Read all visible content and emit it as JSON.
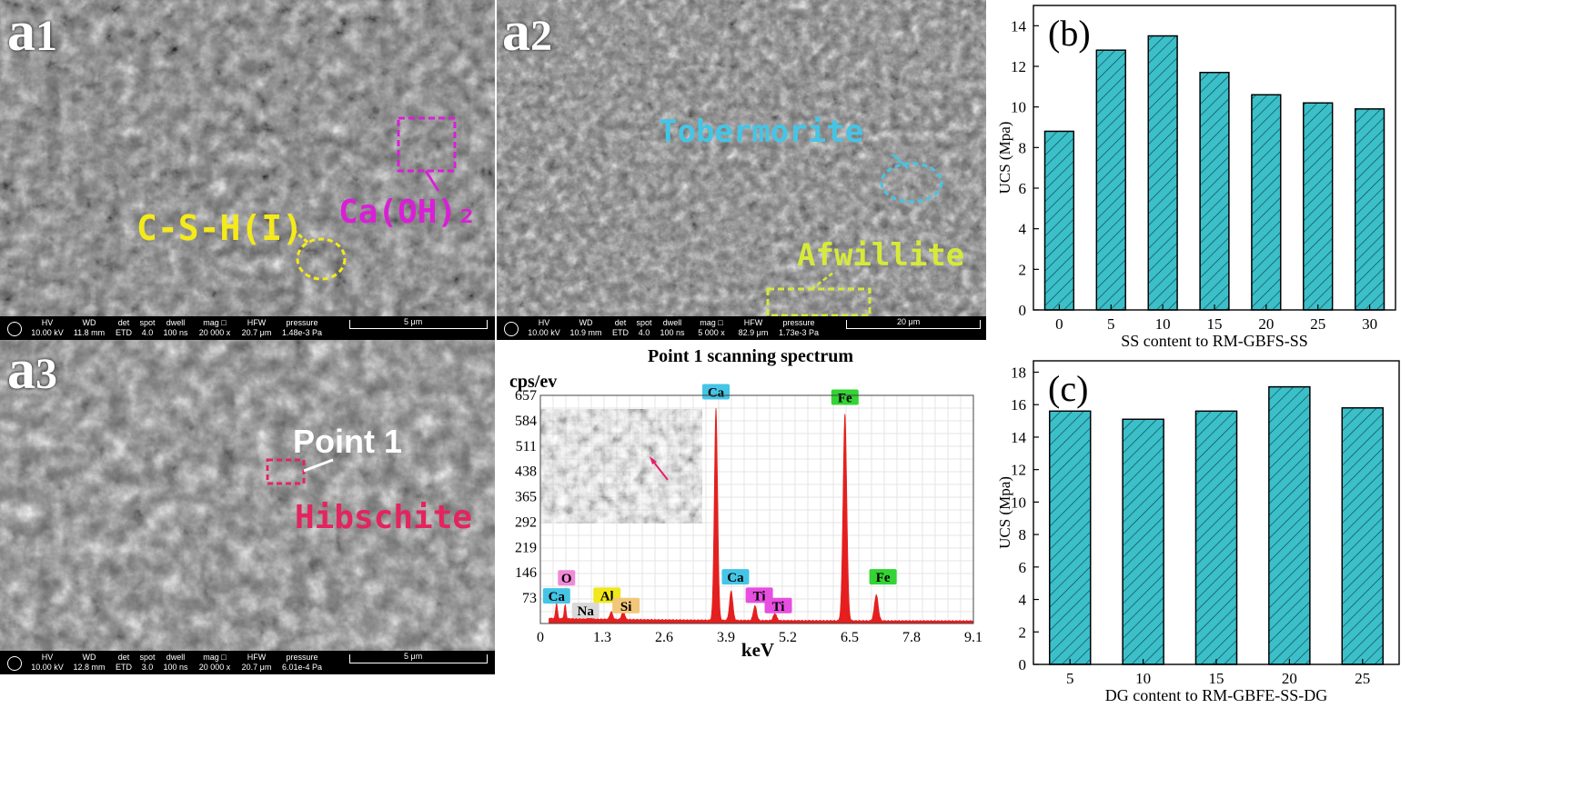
{
  "sem_panels": {
    "a1": {
      "label_main": "a",
      "label_sub": "1",
      "annotations": {
        "csh": "C-S-H(I)",
        "caoh": "Ca(OH)₂"
      },
      "info": {
        "hv": [
          "HV",
          "10.00 kV"
        ],
        "wd": [
          "WD",
          "11.8 mm"
        ],
        "det": [
          "det",
          "ETD"
        ],
        "spot": [
          "spot",
          "4.0"
        ],
        "dwell": [
          "dwell",
          "100 ns"
        ],
        "mag": [
          "mag □",
          "20 000 x"
        ],
        "hfw": [
          "HFW",
          "20.7 μm"
        ],
        "pressure": [
          "pressure",
          "1.48e-3 Pa"
        ],
        "scale": "5 μm"
      }
    },
    "a2": {
      "label_main": "a",
      "label_sub": "2",
      "annotations": {
        "tobermorite": "Tobermorite",
        "afwillite": "Afwillite"
      },
      "info": {
        "hv": [
          "HV",
          "10.00 kV"
        ],
        "wd": [
          "WD",
          "10.9 mm"
        ],
        "det": [
          "det",
          "ETD"
        ],
        "spot": [
          "spot",
          "4.0"
        ],
        "dwell": [
          "dwell",
          "100 ns"
        ],
        "mag": [
          "mag □",
          "5 000 x"
        ],
        "hfw": [
          "HFW",
          "82.9 μm"
        ],
        "pressure": [
          "pressure",
          "1.73e-3 Pa"
        ],
        "scale": "20 μm"
      }
    },
    "a3": {
      "label_main": "a",
      "label_sub": "3",
      "annotations": {
        "point": "Point 1",
        "hibschite": "Hibschite"
      },
      "info": {
        "hv": [
          "HV",
          "10.00 kV"
        ],
        "wd": [
          "WD",
          "12.8 mm"
        ],
        "det": [
          "det",
          "ETD"
        ],
        "spot": [
          "spot",
          "3.0"
        ],
        "dwell": [
          "dwell",
          "100 ns"
        ],
        "mag": [
          "mag □",
          "20 000 x"
        ],
        "hfw": [
          "HFW",
          "20.7 μm"
        ],
        "pressure": [
          "pressure",
          "6.01e-4 Pa"
        ],
        "scale": "5 μm"
      }
    }
  },
  "colors": {
    "bar_fill": "#3bbfc9",
    "eds_fill": "#e51f1f",
    "csh": "#f5ea1a",
    "caoh": "#d91fd6",
    "tobermorite": "#45c5e6",
    "afwillite": "#d6ea3a",
    "point": "#ffffff",
    "hibschite": "#e3245f"
  },
  "chart_data": [
    {
      "id": "eds",
      "type": "area",
      "title": "Point 1 scanning spectrum",
      "xlabel": "keV",
      "ylabel": "cps/ev",
      "xticks": [
        0,
        1.3,
        2.6,
        3.9,
        5.2,
        6.5,
        7.8,
        9.1
      ],
      "yticks": [
        73,
        146,
        219,
        292,
        365,
        438,
        511,
        584,
        657
      ],
      "xlim": [
        0,
        9.1
      ],
      "ylim": [
        0,
        657
      ],
      "grid": true,
      "peaks": [
        {
          "x": 0.34,
          "y": 45,
          "w": 0.02
        },
        {
          "x": 0.52,
          "y": 40,
          "w": 0.02
        },
        {
          "x": 1.04,
          "y": 10,
          "w": 0.03
        },
        {
          "x": 1.49,
          "y": 22,
          "w": 0.03
        },
        {
          "x": 1.74,
          "y": 28,
          "w": 0.03
        },
        {
          "x": 3.69,
          "y": 610,
          "w": 0.035
        },
        {
          "x": 4.01,
          "y": 85,
          "w": 0.035
        },
        {
          "x": 4.51,
          "y": 42,
          "w": 0.035
        },
        {
          "x": 4.93,
          "y": 20,
          "w": 0.035
        },
        {
          "x": 6.4,
          "y": 595,
          "w": 0.04
        },
        {
          "x": 7.06,
          "y": 75,
          "w": 0.04
        }
      ],
      "peak_labels": [
        {
          "text": "Ca",
          "x": 0.34,
          "y": 60,
          "bg": "#45c5e6"
        },
        {
          "text": "O",
          "x": 0.55,
          "y": 112,
          "bg": "#f08ad7"
        },
        {
          "text": "Na",
          "x": 0.95,
          "y": 18,
          "bg": "#d9d9d9"
        },
        {
          "text": "Al",
          "x": 1.4,
          "y": 62,
          "bg": "#f0e81a"
        },
        {
          "text": "Si",
          "x": 1.8,
          "y": 32,
          "bg": "#f2c77a"
        },
        {
          "text": "Ca",
          "x": 3.69,
          "y": 648,
          "bg": "#45c5e6"
        },
        {
          "text": "Ca",
          "x": 4.1,
          "y": 115,
          "bg": "#45c5e6"
        },
        {
          "text": "Ti",
          "x": 4.6,
          "y": 62,
          "bg": "#e64fdf"
        },
        {
          "text": "Ti",
          "x": 5.0,
          "y": 32,
          "bg": "#e64fdf"
        },
        {
          "text": "Fe",
          "x": 6.4,
          "y": 632,
          "bg": "#33d433"
        },
        {
          "text": "Fe",
          "x": 7.2,
          "y": 115,
          "bg": "#33d433"
        }
      ]
    },
    {
      "id": "b",
      "type": "bar",
      "panel_label": "(b)",
      "categories": [
        "0",
        "5",
        "10",
        "15",
        "20",
        "25",
        "30"
      ],
      "values": [
        8.8,
        12.8,
        13.5,
        11.7,
        10.6,
        10.2,
        9.9
      ],
      "xlabel": "SS content to RM-GBFS-SS",
      "ylabel": "UCS (Mpa)",
      "yticks": [
        0,
        2,
        4,
        6,
        8,
        10,
        12,
        14
      ],
      "ylim": [
        0,
        15
      ]
    },
    {
      "id": "c",
      "type": "bar",
      "panel_label": "(c)",
      "categories": [
        "5",
        "10",
        "15",
        "20",
        "25"
      ],
      "values": [
        15.6,
        15.1,
        15.6,
        17.1,
        15.8
      ],
      "xlabel": "DG content to RM-GBFE-SS-DG",
      "ylabel": "UCS (Mpa)",
      "yticks": [
        0,
        2,
        4,
        6,
        8,
        10,
        12,
        14,
        16,
        18
      ],
      "ylim": [
        0,
        18.7
      ]
    }
  ]
}
